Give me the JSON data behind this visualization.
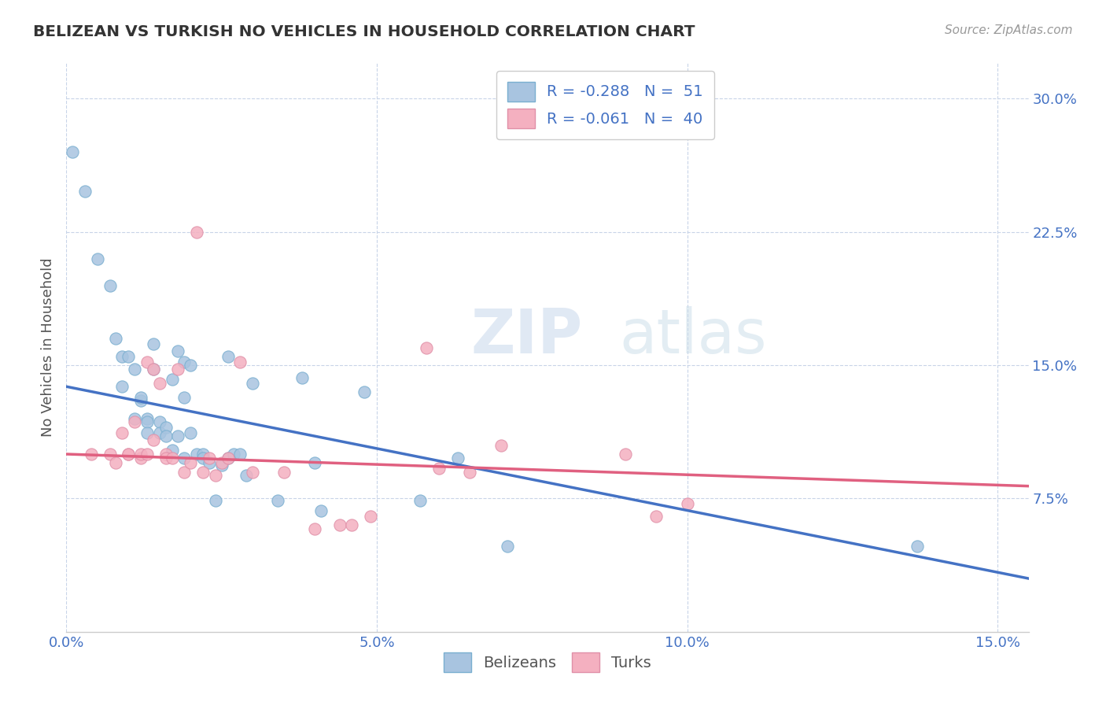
{
  "title": "BELIZEAN VS TURKISH NO VEHICLES IN HOUSEHOLD CORRELATION CHART",
  "source": "Source: ZipAtlas.com",
  "ylabel": "No Vehicles in Household",
  "xlim": [
    0.0,
    0.155
  ],
  "ylim": [
    0.0,
    0.32
  ],
  "xticks": [
    0.0,
    0.05,
    0.1,
    0.15
  ],
  "yticks": [
    0.075,
    0.15,
    0.225,
    0.3
  ],
  "xticklabels": [
    "0.0%",
    "5.0%",
    "10.0%",
    "15.0%"
  ],
  "yticklabels": [
    "7.5%",
    "15.0%",
    "22.5%",
    "30.0%"
  ],
  "belizean_color": "#a8c4e0",
  "turkish_color": "#f4b0c0",
  "trend_blue": "#4472c4",
  "trend_pink": "#e06080",
  "watermark_zip": "ZIP",
  "watermark_atlas": "atlas",
  "legend_line1": "R = -0.288   N =  51",
  "legend_line2": "R = -0.061   N =  40",
  "belizean_scatter_x": [
    0.001,
    0.003,
    0.005,
    0.007,
    0.008,
    0.009,
    0.009,
    0.01,
    0.011,
    0.011,
    0.012,
    0.012,
    0.013,
    0.013,
    0.013,
    0.014,
    0.014,
    0.015,
    0.015,
    0.016,
    0.016,
    0.017,
    0.017,
    0.018,
    0.018,
    0.019,
    0.019,
    0.019,
    0.02,
    0.02,
    0.021,
    0.022,
    0.022,
    0.023,
    0.024,
    0.025,
    0.026,
    0.026,
    0.027,
    0.028,
    0.029,
    0.03,
    0.034,
    0.038,
    0.04,
    0.041,
    0.048,
    0.057,
    0.063,
    0.071,
    0.137
  ],
  "belizean_scatter_y": [
    0.27,
    0.248,
    0.21,
    0.195,
    0.165,
    0.155,
    0.138,
    0.155,
    0.148,
    0.12,
    0.13,
    0.132,
    0.12,
    0.118,
    0.112,
    0.148,
    0.162,
    0.118,
    0.112,
    0.115,
    0.11,
    0.142,
    0.102,
    0.158,
    0.11,
    0.132,
    0.098,
    0.152,
    0.15,
    0.112,
    0.1,
    0.1,
    0.098,
    0.095,
    0.074,
    0.094,
    0.098,
    0.155,
    0.1,
    0.1,
    0.088,
    0.14,
    0.074,
    0.143,
    0.095,
    0.068,
    0.135,
    0.074,
    0.098,
    0.048,
    0.048
  ],
  "turkish_scatter_x": [
    0.004,
    0.007,
    0.008,
    0.009,
    0.01,
    0.01,
    0.011,
    0.012,
    0.012,
    0.013,
    0.013,
    0.014,
    0.014,
    0.015,
    0.016,
    0.016,
    0.017,
    0.018,
    0.019,
    0.02,
    0.021,
    0.022,
    0.023,
    0.024,
    0.025,
    0.026,
    0.028,
    0.03,
    0.035,
    0.04,
    0.044,
    0.046,
    0.049,
    0.058,
    0.06,
    0.065,
    0.07,
    0.09,
    0.095,
    0.1
  ],
  "turkish_scatter_y": [
    0.1,
    0.1,
    0.095,
    0.112,
    0.1,
    0.1,
    0.118,
    0.098,
    0.1,
    0.152,
    0.1,
    0.108,
    0.148,
    0.14,
    0.1,
    0.098,
    0.098,
    0.148,
    0.09,
    0.095,
    0.225,
    0.09,
    0.098,
    0.088,
    0.095,
    0.098,
    0.152,
    0.09,
    0.09,
    0.058,
    0.06,
    0.06,
    0.065,
    0.16,
    0.092,
    0.09,
    0.105,
    0.1,
    0.065,
    0.072
  ],
  "trend_blue_x0": 0.0,
  "trend_blue_y0": 0.138,
  "trend_blue_x1": 0.155,
  "trend_blue_y1": 0.03,
  "trend_pink_x0": 0.0,
  "trend_pink_y0": 0.1,
  "trend_pink_x1": 0.155,
  "trend_pink_y1": 0.082
}
